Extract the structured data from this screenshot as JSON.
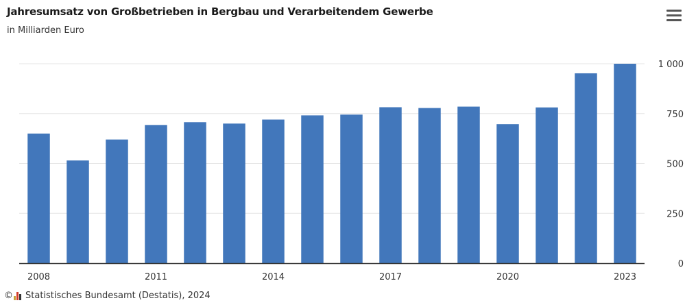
{
  "title": "Jahresumsatz von Großbetrieben in Bergbau und Verarbeitendem Gewerbe",
  "subtitle": "in Milliarden Euro",
  "footer": {
    "copyright_symbol": "©",
    "source": "Statistisches Bundesamt (Destatis), 2024"
  },
  "menu_icon": "hamburger-menu-icon",
  "colors": {
    "bar": "#4277bb",
    "grid": "#e6e6e6",
    "axis": "#333333"
  },
  "chart_data": {
    "type": "bar",
    "categories": [
      "2008",
      "2009",
      "2010",
      "2011",
      "2012",
      "2013",
      "2014",
      "2015",
      "2016",
      "2017",
      "2018",
      "2019",
      "2020",
      "2021",
      "2022",
      "2023"
    ],
    "values": [
      650,
      515,
      620,
      693,
      707,
      700,
      720,
      741,
      745,
      782,
      778,
      785,
      697,
      781,
      952,
      1000
    ],
    "x_tick_labels": [
      "2008",
      "2011",
      "2014",
      "2017",
      "2020",
      "2023"
    ],
    "y_ticks": [
      0,
      250,
      500,
      750,
      1000
    ],
    "y_tick_labels": [
      "0",
      "250",
      "500",
      "750",
      "1 000"
    ],
    "ylim": [
      0,
      1000
    ],
    "title": "Jahresumsatz von Großbetrieben in Bergbau und Verarbeitendem Gewerbe",
    "xlabel": "",
    "ylabel": "",
    "grid": true,
    "legend": "none"
  }
}
